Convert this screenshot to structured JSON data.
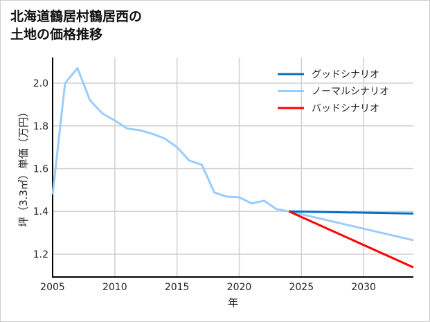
{
  "chart_data": {
    "type": "line",
    "title": "北海道鶴居村鶴居西の\n土地の価格推移",
    "xlabel": "年",
    "ylabel": "坪（3.3㎡）単価（万円）",
    "xlim": [
      2005,
      2034
    ],
    "ylim": [
      1.093,
      2.12
    ],
    "xticks": [
      2005,
      2010,
      2015,
      2020,
      2025,
      2030
    ],
    "xtick_labels": [
      "2005",
      "2010",
      "2015",
      "2020",
      "2025",
      "2030"
    ],
    "yticks": [
      1.2,
      1.4,
      1.6,
      1.8,
      2.0
    ],
    "ytick_labels": [
      "1.2",
      "1.4",
      "1.6",
      "1.8",
      "2.0"
    ],
    "grid": true,
    "legend_position": "top-right",
    "series": [
      {
        "name": "グッドシナリオ",
        "color": "#0070c8",
        "x": [
          2024,
          2034
        ],
        "y": [
          1.4,
          1.39
        ]
      },
      {
        "name": "ノーマルシナリオ",
        "color": "#99ccff",
        "x": [
          2005,
          2006,
          2007,
          2008,
          2009,
          2010,
          2011,
          2012,
          2013,
          2014,
          2015,
          2016,
          2017,
          2018,
          2019,
          2020,
          2021,
          2022,
          2023,
          2024,
          2034
        ],
        "y": [
          1.48,
          2.0,
          2.07,
          1.92,
          1.858,
          1.825,
          1.787,
          1.78,
          1.763,
          1.741,
          1.7,
          1.637,
          1.618,
          1.488,
          1.469,
          1.466,
          1.437,
          1.45,
          1.41,
          1.4,
          1.265
        ]
      },
      {
        "name": "バッドシナリオ",
        "color": "#ff0000",
        "x": [
          2024,
          2034
        ],
        "y": [
          1.4,
          1.138
        ]
      }
    ]
  }
}
